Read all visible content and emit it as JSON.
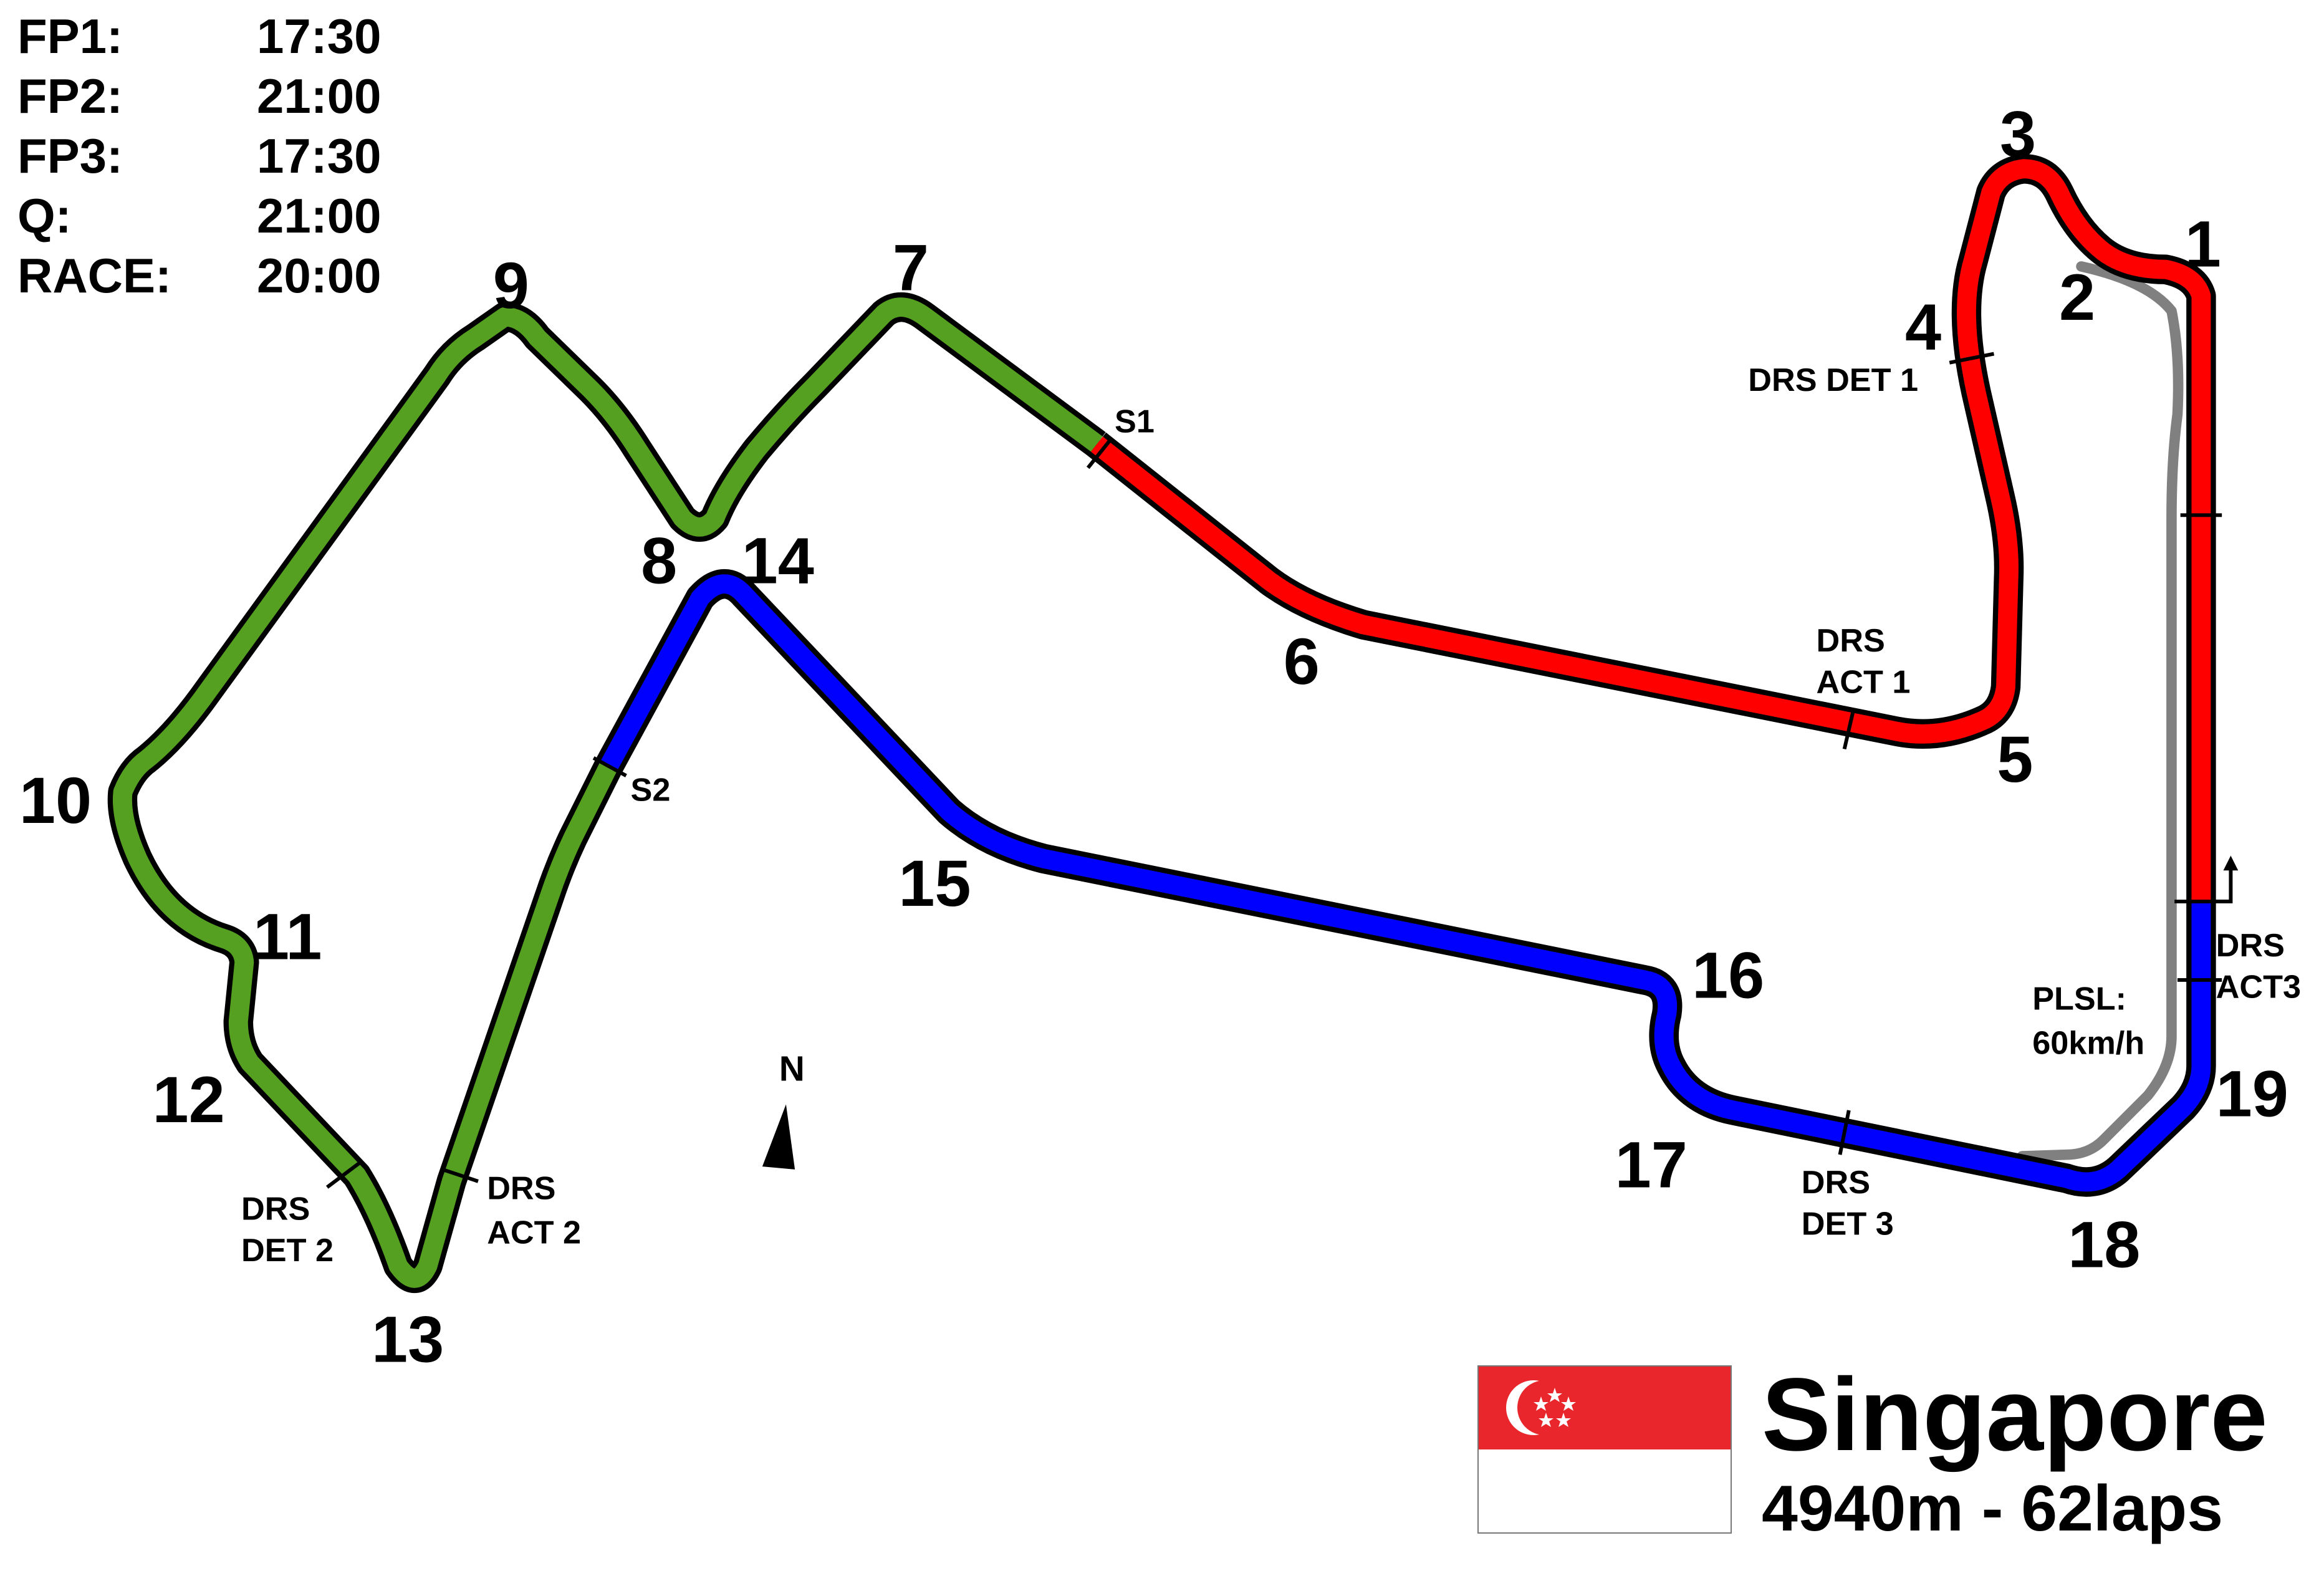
{
  "schedule": [
    {
      "session": "FP1:",
      "time": "17:30"
    },
    {
      "session": "FP2:",
      "time": "21:00"
    },
    {
      "session": "FP3:",
      "time": "17:30"
    },
    {
      "session": "Q:",
      "time": "21:00"
    },
    {
      "session": "RACE:",
      "time": "20:00"
    }
  ],
  "circuit": {
    "name": "Singapore",
    "length_laps": "4940m - 62laps"
  },
  "colors": {
    "sector1": "#ff0000",
    "sector2": "#55a020",
    "sector3": "#0000ff",
    "pitlane": "#808080",
    "flag_red": "#e8262b",
    "flag_white": "#ffffff"
  },
  "turns": [
    "1",
    "2",
    "3",
    "4",
    "5",
    "6",
    "7",
    "8",
    "9",
    "10",
    "11",
    "12",
    "13",
    "14",
    "15",
    "16",
    "17",
    "18",
    "19"
  ],
  "markers": {
    "s1": "S1",
    "s2": "S2",
    "drs_det_1": "DRS DET 1",
    "drs_act_1": [
      "DRS",
      "ACT 1"
    ],
    "drs_det_2": [
      "DRS",
      "DET 2"
    ],
    "drs_act_2": [
      "DRS",
      "ACT 2"
    ],
    "drs_det_3": [
      "DRS",
      "DET 3"
    ],
    "drs_act_3": [
      "DRS",
      "ACT3"
    ],
    "pit_limit": [
      "PLSL:",
      "60km/h"
    ],
    "north": "N"
  },
  "icons": {
    "north_arrow": "north-arrow-icon",
    "start_arrow": "start-direction-arrow-icon",
    "flag": "singapore-flag-icon"
  }
}
